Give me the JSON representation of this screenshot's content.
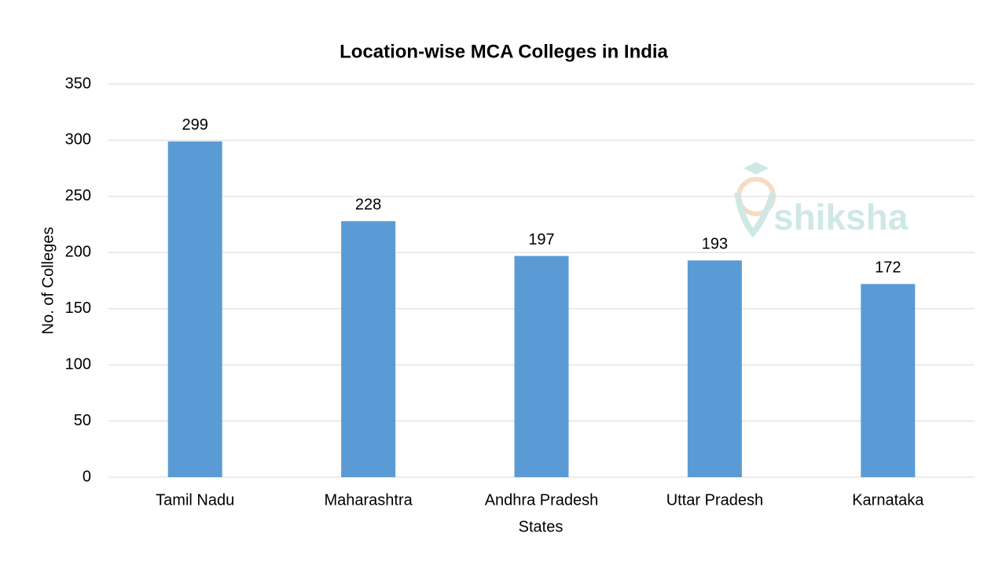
{
  "chart_data": {
    "type": "bar",
    "title": "Location-wise MCA Colleges in India",
    "x_label": "States",
    "y_label": "No. of Colleges",
    "categories": [
      "Tamil Nadu",
      "Maharashtra",
      "Andhra Pradesh",
      "Uttar Pradesh",
      "Karnataka"
    ],
    "values": [
      299,
      228,
      197,
      193,
      172
    ],
    "color": "#5b9bd5",
    "ylim": [
      0,
      350
    ],
    "yticks": [
      0,
      50,
      100,
      150,
      200,
      250,
      300,
      350
    ],
    "grid": true,
    "watermark": "shiksha"
  }
}
